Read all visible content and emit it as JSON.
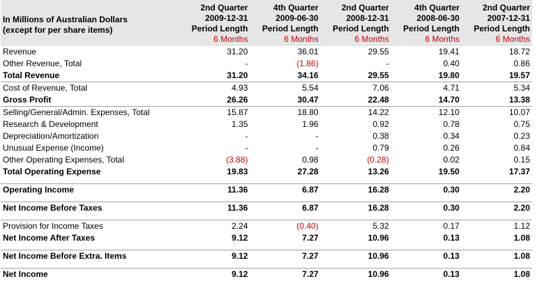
{
  "header": {
    "title_line1": "In Millions of Australian Dollars",
    "title_line2": "(except for per share items)",
    "columns": [
      {
        "quarter": "2nd Quarter",
        "date": "2009-12-31",
        "period_label": "Period Length",
        "period": "6 Months"
      },
      {
        "quarter": "4th Quarter",
        "date": "2009-06-30",
        "period_label": "Period Length",
        "period": "6 Months"
      },
      {
        "quarter": "2nd Quarter",
        "date": "2008-12-31",
        "period_label": "Period Length",
        "period": "6 Months"
      },
      {
        "quarter": "4th Quarter",
        "date": "2008-06-30",
        "period_label": "Period Length",
        "period": "6 Months"
      },
      {
        "quarter": "2nd Quarter",
        "date": "2007-12-31",
        "period_label": "Period Length",
        "period": "6 Months"
      }
    ]
  },
  "rows": [
    {
      "label": "Revenue",
      "values": [
        "31.20",
        "36.01",
        "29.55",
        "19.41",
        "18.72"
      ]
    },
    {
      "label": "Other Revenue, Total",
      "values": [
        "-",
        "(1.86)",
        "-",
        "0.40",
        "0.86"
      ]
    },
    {
      "label": "Total Revenue",
      "values": [
        "31.20",
        "34.16",
        "29.55",
        "19.80",
        "19.57"
      ]
    },
    {
      "label": "Cost of Revenue, Total",
      "values": [
        "4.93",
        "5.54",
        "7.06",
        "4.71",
        "5.34"
      ]
    },
    {
      "label": "Gross Profit",
      "values": [
        "26.26",
        "30.47",
        "22.48",
        "14.70",
        "13.38"
      ]
    },
    {
      "label": "Selling/General/Admin. Expenses, Total",
      "values": [
        "15.87",
        "18.80",
        "14.22",
        "12.10",
        "10.07"
      ]
    },
    {
      "label": "Research & Development",
      "values": [
        "1.35",
        "1.96",
        "0.92",
        "0.78",
        "0.75"
      ]
    },
    {
      "label": "Depreciation/Amortization",
      "values": [
        "-",
        "-",
        "0.38",
        "0.34",
        "0.23"
      ]
    },
    {
      "label": "Unusual Expense (Income)",
      "values": [
        "-",
        "-",
        "0.79",
        "0.26",
        "0.84"
      ]
    },
    {
      "label": "Other Operating Expenses, Total",
      "values": [
        "(3.88)",
        "0.98",
        "(0.28)",
        "0.02",
        "0.15"
      ]
    },
    {
      "label": "Total Operating Expense",
      "values": [
        "19.83",
        "27.28",
        "13.26",
        "19.50",
        "17.37"
      ]
    },
    {
      "label": "Operating Income",
      "values": [
        "11.36",
        "6.87",
        "16.28",
        "0.30",
        "2.20"
      ]
    },
    {
      "label": "Net Income Before Taxes",
      "values": [
        "11.36",
        "6.87",
        "16.28",
        "0.30",
        "2.20"
      ]
    },
    {
      "label": "Provision for Income Taxes",
      "values": [
        "2.24",
        "(0.40)",
        "5.32",
        "0.17",
        "1.12"
      ]
    },
    {
      "label": "Net Income After Taxes",
      "values": [
        "9.12",
        "7.27",
        "10.96",
        "0.13",
        "1.08"
      ]
    },
    {
      "label": "Net Income Before Extra. Items",
      "values": [
        "9.12",
        "7.27",
        "10.96",
        "0.13",
        "1.08"
      ]
    },
    {
      "label": "Net Income",
      "values": [
        "9.12",
        "7.27",
        "10.96",
        "0.13",
        "1.08"
      ]
    }
  ]
}
